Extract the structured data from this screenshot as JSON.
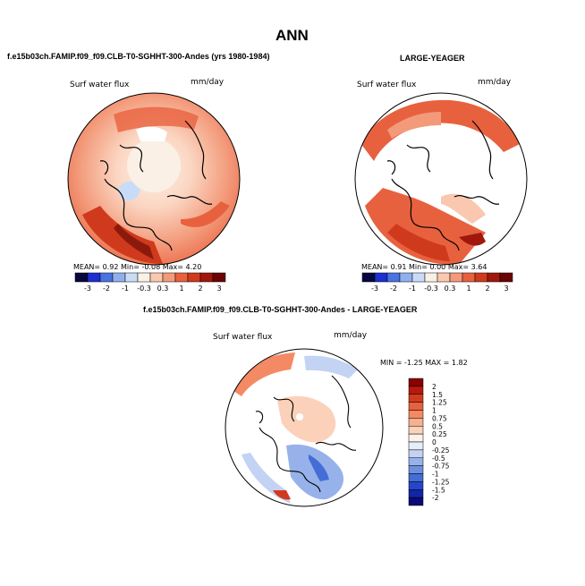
{
  "page": {
    "title": "ANN",
    "panel_left_title": "f.e15b03ch.FAMIP.f09_f09.CLB-T0-SGHHT-300-Andes (yrs 1980-1984)",
    "panel_right_title": "LARGE-YEAGER",
    "panel_diff_title": "f.e15b03ch.FAMIP.f09_f09.CLB-T0-SGHHT-300-Andes - LARGE-YEAGER"
  },
  "chart_data": [
    {
      "type": "map",
      "projection": "polar-stereographic (north)",
      "variable": "Surf water flux",
      "units": "mm/day",
      "stats_text": "MEAN=   0.92  Min=  -0.08  Max=   4.20",
      "mean": 0.92,
      "min": -0.08,
      "max": 4.2,
      "colorbar": {
        "orientation": "horizontal",
        "tick_labels": [
          "-3",
          "-2",
          "-1",
          "-0.3",
          "0.3",
          "1",
          "2",
          "3"
        ],
        "levels": [
          -3,
          -2,
          -1,
          -0.3,
          0.3,
          1,
          2,
          3
        ],
        "colors": [
          "#08083f",
          "#1c2fd0",
          "#4a72e0",
          "#8fb0ee",
          "#c9dcf7",
          "#fbf0e6",
          "#f9c8ae",
          "#f39a7a",
          "#e8613f",
          "#d03a1c",
          "#a0180c",
          "#6a0505"
        ]
      }
    },
    {
      "type": "map",
      "projection": "polar-stereographic (north)",
      "variable": "Surf water flux",
      "units": "mm/day",
      "stats_text": "MEAN=   0.91  Min=   0.00  Max=   3.64",
      "mean": 0.91,
      "min": 0.0,
      "max": 3.64,
      "colorbar": {
        "orientation": "horizontal",
        "tick_labels": [
          "-3",
          "-2",
          "-1",
          "-0.3",
          "0.3",
          "1",
          "2",
          "3"
        ],
        "levels": [
          -3,
          -2,
          -1,
          -0.3,
          0.3,
          1,
          2,
          3
        ],
        "colors": [
          "#08083f",
          "#1c2fd0",
          "#4a72e0",
          "#8fb0ee",
          "#c9dcf7",
          "#fbf0e6",
          "#f9c8ae",
          "#f39a7a",
          "#e8613f",
          "#d03a1c",
          "#a0180c",
          "#6a0505"
        ]
      }
    },
    {
      "type": "map",
      "projection": "polar-stereographic (north)",
      "variable": "Surf water flux",
      "units": "mm/day",
      "stats_text": "MIN =  -1.25  MAX =    1.82",
      "min": -1.25,
      "max": 1.82,
      "colorbar": {
        "orientation": "vertical",
        "tick_labels": [
          "2",
          "1.5",
          "1.25",
          "1",
          "0.75",
          "0.5",
          "0.25",
          "0",
          "-0.25",
          "-0.5",
          "-0.75",
          "-1",
          "-1.25",
          "-1.5",
          "-2"
        ],
        "levels": [
          2,
          1.5,
          1.25,
          1,
          0.75,
          0.5,
          0.25,
          0,
          -0.25,
          -0.5,
          -0.75,
          -1,
          -1.25,
          -1.5,
          -2
        ],
        "colors": [
          "#8b0000",
          "#b51a0c",
          "#d23a1f",
          "#e8613f",
          "#f48a64",
          "#f8b08e",
          "#fbd1ba",
          "#fdf2e7",
          "#e6eefa",
          "#c2d3f3",
          "#97b2ea",
          "#6d8fe0",
          "#456dd6",
          "#2547c7",
          "#1325a8",
          "#0a0a78"
        ]
      }
    }
  ]
}
